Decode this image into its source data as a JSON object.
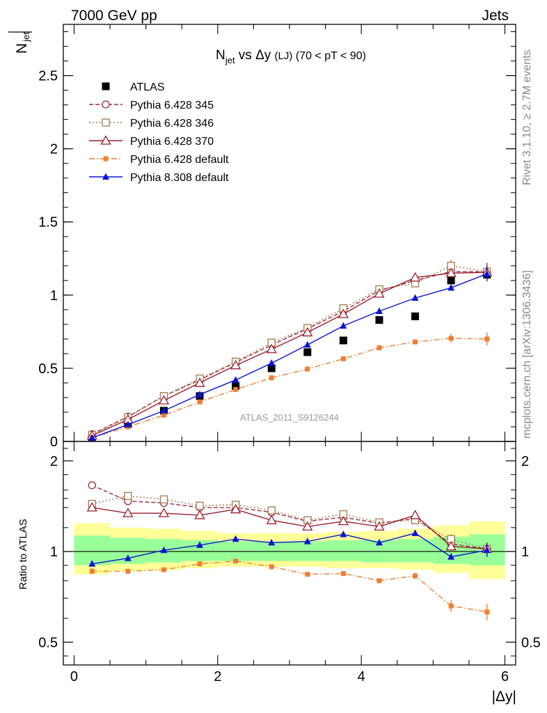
{
  "header": {
    "left": "7000 GeV pp",
    "right": "Jets"
  },
  "side_labels": {
    "rivet": "Rivet 3.1.10, ≥ 2.7M events",
    "mcplots": "mcplots.cern.ch [arXiv:1306.3436]"
  },
  "analysis_label": "ATLAS_2011_S9126244",
  "chart_data": [
    {
      "type": "line",
      "title_parts": {
        "n": "N",
        "sub": "jet",
        "mid": " vs Δy ",
        "lj": "(LJ)",
        "cut": " (70 < pT <  90)"
      },
      "ylabel_num": "N",
      "ylabel_sub": "jet",
      "xlim": [
        -0.15,
        6.15
      ],
      "ylim": [
        0,
        2.85
      ],
      "y_ticks": [
        {
          "v": 0,
          "label": "0"
        },
        {
          "v": 0.5,
          "label": "0.5"
        },
        {
          "v": 1,
          "label": "1"
        },
        {
          "v": 1.5,
          "label": "1.5"
        },
        {
          "v": 2,
          "label": "2"
        },
        {
          "v": 2.5,
          "label": "2.5"
        }
      ],
      "legend": [
        {
          "name": "ATLAS",
          "series": "atlas"
        },
        {
          "name": "Pythia 6.428 345",
          "series": "p345"
        },
        {
          "name": "Pythia 6.428 346",
          "series": "p346"
        },
        {
          "name": "Pythia 6.428 370",
          "series": "p370"
        },
        {
          "name": "Pythia 6.428 default",
          "series": "p6def"
        },
        {
          "name": "Pythia 8.308 default",
          "series": "p8def"
        }
      ],
      "x": [
        0.25,
        0.75,
        1.25,
        1.75,
        2.25,
        2.75,
        3.25,
        3.75,
        4.25,
        4.75,
        5.25,
        5.75
      ],
      "series": [
        {
          "id": "atlas",
          "name": "ATLAS",
          "color": "#000000",
          "marker": "square-filled",
          "values": [
            0.03,
            0.12,
            0.21,
            0.31,
            0.38,
            0.5,
            0.61,
            0.69,
            0.83,
            0.855,
            1.1,
            1.14
          ],
          "errors": [
            0,
            0,
            0,
            0,
            0,
            0,
            0,
            0,
            0,
            0,
            0.02,
            0.04
          ]
        },
        {
          "id": "p345",
          "name": "Pythia 6.428 345",
          "color": "#a0283c",
          "marker": "circle-open",
          "dash": "6,3",
          "values": [
            0.05,
            0.17,
            0.31,
            0.42,
            0.54,
            0.66,
            0.77,
            0.89,
            1.03,
            1.1,
            1.16,
            1.16
          ],
          "errors": [
            0,
            0,
            0,
            0,
            0,
            0,
            0,
            0,
            0,
            0,
            0.03,
            0.06
          ]
        },
        {
          "id": "p346",
          "name": "Pythia 6.428 346",
          "color": "#a0784a",
          "marker": "square-open",
          "dash": "2,3",
          "values": [
            0.045,
            0.165,
            0.31,
            0.43,
            0.545,
            0.675,
            0.775,
            0.91,
            1.04,
            1.08,
            1.2,
            1.16
          ],
          "errors": [
            0,
            0,
            0,
            0,
            0,
            0,
            0,
            0,
            0,
            0,
            0.04,
            0.05
          ]
        },
        {
          "id": "p370",
          "name": "Pythia 6.428 370",
          "color": "#9b1b2e",
          "marker": "triangle-open",
          "dash": "",
          "values": [
            0.04,
            0.15,
            0.28,
            0.4,
            0.52,
            0.63,
            0.745,
            0.87,
            1.01,
            1.12,
            1.15,
            1.155
          ],
          "errors": [
            0,
            0,
            0,
            0,
            0,
            0,
            0,
            0,
            0,
            0.02,
            0.03,
            0.05
          ]
        },
        {
          "id": "p6def",
          "name": "Pythia 6.428 default",
          "color": "#f07e30",
          "marker": "square-filled-small",
          "dash": "8,3,2,3",
          "values": [
            0.025,
            0.1,
            0.18,
            0.27,
            0.355,
            0.435,
            0.495,
            0.565,
            0.64,
            0.68,
            0.705,
            0.7
          ],
          "errors": [
            0,
            0,
            0,
            0,
            0,
            0,
            0,
            0,
            0,
            0.01,
            0.03,
            0.045
          ]
        },
        {
          "id": "p8def",
          "name": "Pythia 8.308 default",
          "color": "#0a14d4",
          "marker": "triangle-filled",
          "dash": "",
          "values": [
            0.025,
            0.115,
            0.21,
            0.32,
            0.42,
            0.535,
            0.66,
            0.79,
            0.89,
            0.98,
            1.05,
            1.145
          ],
          "errors": [
            0,
            0,
            0,
            0,
            0,
            0,
            0,
            0,
            0,
            0.015,
            0.02,
            0.05
          ]
        }
      ]
    },
    {
      "type": "line",
      "ylabel": "Ratio to ATLAS",
      "xlabel": "|Δy|",
      "scale": "log",
      "xlim": [
        -0.15,
        6.15
      ],
      "ylim": [
        0.42,
        2.32
      ],
      "x_ticks": [
        {
          "v": 0,
          "label": "0"
        },
        {
          "v": 2,
          "label": "2"
        },
        {
          "v": 4,
          "label": "4"
        },
        {
          "v": 6,
          "label": "6"
        }
      ],
      "y_ticks": [
        {
          "v": 0.5,
          "label": "0.5"
        },
        {
          "v": 1,
          "label": "1"
        },
        {
          "v": 2,
          "label": "2"
        }
      ],
      "bands": {
        "edges": [
          0,
          0.5,
          1,
          1.5,
          2,
          2.5,
          3,
          3.5,
          4,
          4.5,
          5,
          5.5,
          6
        ],
        "outer": [
          [
            0.84,
            1.24
          ],
          [
            0.86,
            1.2
          ],
          [
            0.87,
            1.19
          ],
          [
            0.88,
            1.17
          ],
          [
            0.89,
            1.15
          ],
          [
            0.89,
            1.15
          ],
          [
            0.89,
            1.15
          ],
          [
            0.88,
            1.16
          ],
          [
            0.88,
            1.17
          ],
          [
            0.87,
            1.19
          ],
          [
            0.85,
            1.22
          ],
          [
            0.81,
            1.26
          ]
        ],
        "inner": [
          [
            0.9,
            1.13
          ],
          [
            0.91,
            1.11
          ],
          [
            0.92,
            1.1
          ],
          [
            0.93,
            1.09
          ],
          [
            0.93,
            1.08
          ],
          [
            0.93,
            1.08
          ],
          [
            0.93,
            1.08
          ],
          [
            0.93,
            1.09
          ],
          [
            0.92,
            1.09
          ],
          [
            0.92,
            1.1
          ],
          [
            0.91,
            1.12
          ],
          [
            0.9,
            1.14
          ]
        ],
        "outer_color": "#ffff99",
        "inner_color": "#99ff99"
      },
      "x": [
        0.25,
        0.75,
        1.25,
        1.75,
        2.25,
        2.75,
        3.25,
        3.75,
        4.25,
        4.75,
        5.25,
        5.75
      ],
      "series": [
        {
          "id": "p345",
          "color": "#a0283c",
          "marker": "circle-open",
          "dash": "6,3",
          "values": [
            1.66,
            1.47,
            1.45,
            1.4,
            1.4,
            1.35,
            1.26,
            1.3,
            1.24,
            1.29,
            1.06,
            1.02
          ],
          "errors": [
            0,
            0,
            0,
            0,
            0,
            0,
            0,
            0,
            0,
            0,
            0.03,
            0.05
          ]
        },
        {
          "id": "p346",
          "color": "#a0784a",
          "marker": "square-open",
          "dash": "2,3",
          "values": [
            1.44,
            1.53,
            1.49,
            1.42,
            1.43,
            1.37,
            1.27,
            1.33,
            1.25,
            1.27,
            1.1,
            1.02
          ],
          "errors": [
            0,
            0,
            0,
            0,
            0,
            0,
            0,
            0,
            0,
            0,
            0.04,
            0.05
          ]
        },
        {
          "id": "p370",
          "color": "#9b1b2e",
          "marker": "triangle-open",
          "dash": "",
          "values": [
            1.4,
            1.34,
            1.34,
            1.32,
            1.38,
            1.27,
            1.21,
            1.26,
            1.21,
            1.32,
            1.04,
            1.02
          ],
          "errors": [
            0,
            0,
            0,
            0,
            0,
            0,
            0,
            0,
            0,
            0.02,
            0.03,
            0.05
          ]
        },
        {
          "id": "p6def",
          "color": "#f07e30",
          "marker": "square-filled-small",
          "dash": "8,3,2,3",
          "values": [
            0.86,
            0.86,
            0.87,
            0.91,
            0.93,
            0.89,
            0.84,
            0.845,
            0.8,
            0.83,
            0.66,
            0.63
          ],
          "errors": [
            0.02,
            0,
            0,
            0,
            0,
            0,
            0,
            0,
            0,
            0.02,
            0.03,
            0.04
          ]
        },
        {
          "id": "p8def",
          "color": "#0a14d4",
          "marker": "triangle-filled",
          "dash": "",
          "values": [
            0.91,
            0.95,
            1.01,
            1.05,
            1.1,
            1.07,
            1.08,
            1.14,
            1.07,
            1.15,
            0.96,
            1.01
          ],
          "errors": [
            0,
            0,
            0,
            0,
            0,
            0,
            0,
            0,
            0,
            0,
            0.02,
            0.05
          ]
        }
      ]
    }
  ]
}
